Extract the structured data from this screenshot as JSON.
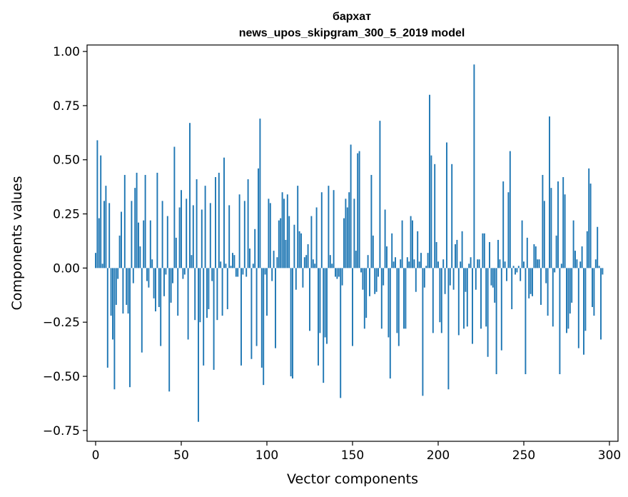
{
  "chart_data": {
    "type": "bar",
    "title": "бархат",
    "subtitle": "news_upos_skipgram_300_5_2019 model",
    "xlabel": "Vector components",
    "ylabel": "Components values",
    "xlim": [
      -5,
      305
    ],
    "ylim": [
      -0.8,
      1.03
    ],
    "xticks": [
      0,
      50,
      100,
      150,
      200,
      250,
      300
    ],
    "xtick_labels": [
      "0",
      "50",
      "100",
      "150",
      "200",
      "250",
      "300"
    ],
    "yticks": [
      -0.75,
      -0.5,
      -0.25,
      0.0,
      0.25,
      0.5,
      0.75,
      1.0
    ],
    "ytick_labels": [
      "−0.75",
      "−0.50",
      "−0.25",
      "0.00",
      "0.25",
      "0.50",
      "0.75",
      "1.00"
    ],
    "bar_color": "#1f77b4",
    "grid": false,
    "values": [
      0.07,
      0.59,
      0.23,
      0.52,
      0.02,
      0.31,
      0.38,
      -0.46,
      0.3,
      -0.22,
      -0.33,
      -0.56,
      -0.17,
      -0.05,
      0.15,
      0.26,
      -0.21,
      0.43,
      -0.17,
      -0.21,
      -0.55,
      0.31,
      -0.07,
      0.37,
      0.44,
      0.21,
      0.1,
      -0.39,
      0.22,
      0.43,
      -0.06,
      -0.09,
      0.22,
      0.04,
      -0.14,
      -0.2,
      0.44,
      -0.18,
      -0.36,
      0.31,
      -0.13,
      -0.03,
      0.24,
      -0.57,
      -0.16,
      -0.07,
      0.56,
      0.14,
      -0.22,
      0.28,
      0.36,
      -0.05,
      -0.03,
      0.32,
      -0.33,
      0.67,
      0.06,
      0.29,
      -0.24,
      0.41,
      -0.71,
      -0.25,
      0.27,
      -0.45,
      0.38,
      -0.23,
      -0.19,
      0.3,
      -0.06,
      -0.47,
      0.42,
      -0.24,
      0.44,
      0.03,
      -0.22,
      0.51,
      0.02,
      -0.19,
      0.29,
      0.01,
      0.07,
      0.06,
      -0.04,
      -0.04,
      0.34,
      -0.45,
      -0.03,
      0.31,
      -0.04,
      0.41,
      0.09,
      -0.42,
      0.02,
      0.18,
      -0.36,
      0.46,
      0.69,
      -0.46,
      -0.54,
      -0.03,
      -0.22,
      0.32,
      0.3,
      -0.06,
      0.08,
      -0.37,
      0.05,
      0.22,
      0.23,
      0.35,
      0.32,
      0.13,
      0.34,
      0.24,
      -0.5,
      -0.51,
      0.2,
      -0.1,
      0.38,
      0.17,
      0.16,
      -0.09,
      0.05,
      0.06,
      0.11,
      -0.29,
      0.24,
      0.04,
      0.02,
      0.28,
      -0.45,
      -0.3,
      0.35,
      -0.53,
      -0.32,
      -0.35,
      0.38,
      0.06,
      0.02,
      0.36,
      -0.04,
      -0.05,
      -0.04,
      -0.6,
      -0.08,
      0.23,
      0.32,
      0.28,
      0.35,
      0.57,
      -0.36,
      0.32,
      0.08,
      0.53,
      0.54,
      -0.02,
      -0.1,
      -0.28,
      -0.23,
      0.06,
      -0.13,
      0.43,
      0.15,
      -0.12,
      -0.11,
      -0.04,
      0.68,
      -0.28,
      -0.08,
      0.27,
      0.1,
      -0.32,
      -0.51,
      0.16,
      0.03,
      0.05,
      -0.3,
      -0.36,
      0.04,
      0.22,
      -0.28,
      -0.28,
      0.05,
      0.03,
      0.24,
      0.22,
      0.04,
      -0.11,
      0.17,
      0.03,
      0.07,
      -0.59,
      -0.09,
      0.01,
      0.07,
      0.8,
      0.52,
      -0.3,
      0.48,
      0.12,
      0.03,
      -0.25,
      -0.3,
      0.04,
      -0.12,
      0.58,
      -0.56,
      -0.08,
      0.48,
      -0.1,
      0.11,
      0.13,
      -0.31,
      0.03,
      0.17,
      -0.28,
      -0.11,
      -0.27,
      0.02,
      0.05,
      -0.35,
      0.94,
      -0.1,
      0.04,
      0.04,
      -0.28,
      0.16,
      0.16,
      -0.27,
      -0.41,
      0.12,
      -0.08,
      -0.09,
      -0.16,
      -0.49,
      0.13,
      0.04,
      -0.38,
      0.4,
      0.03,
      -0.06,
      0.35,
      0.54,
      -0.19,
      0.01,
      -0.03,
      -0.02,
      0.01,
      -0.06,
      0.22,
      0.03,
      -0.49,
      0.14,
      -0.14,
      -0.12,
      -0.13,
      0.11,
      0.1,
      0.04,
      0.04,
      -0.17,
      0.43,
      0.31,
      -0.07,
      -0.22,
      0.7,
      0.37,
      -0.27,
      -0.02,
      0.15,
      0.4,
      -0.49,
      0.02,
      0.42,
      0.34,
      -0.3,
      -0.28,
      -0.21,
      -0.16,
      0.22,
      0.08,
      0.04,
      -0.37,
      0.03,
      0.1,
      -0.4,
      -0.29,
      0.17,
      0.46,
      0.39,
      -0.18,
      -0.22,
      0.04,
      0.19,
      0.01,
      -0.33,
      -0.03
    ]
  }
}
